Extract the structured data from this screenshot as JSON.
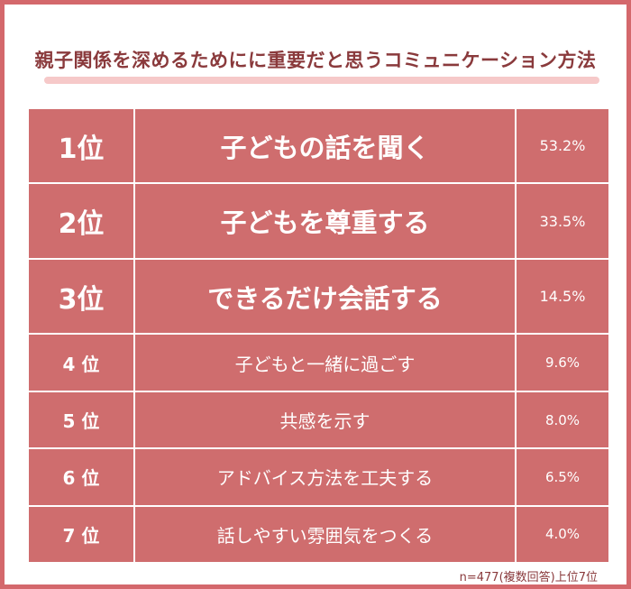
{
  "title": "親子関係を深めるためにに重要だと思うコミュニケーション方法",
  "rows": [
    {
      "rank": "1位",
      "label": "子どもの話を聞く",
      "pct": "53.2%"
    },
    {
      "rank": "2位",
      "label": "子どもを尊重する",
      "pct": "33.5%"
    },
    {
      "rank": "3位",
      "label": "できるだけ会話する",
      "pct": "14.5%"
    },
    {
      "rank": "4 位",
      "label": "子どもと一緒に過ごす",
      "pct": "9.6%"
    },
    {
      "rank": "5 位",
      "label": "共感を示す",
      "pct": "8.0%"
    },
    {
      "rank": "6 位",
      "label": "アドバイス方法を工夫する",
      "pct": "6.5%"
    },
    {
      "rank": "7 位",
      "label": "話しやすい雰囲気をつくる",
      "pct": "4.0%"
    }
  ],
  "note": "n=477(複数回答)上位7位",
  "colors": {
    "accent": "#cf6d6e",
    "border": "#d4686c",
    "title": "#8a3a3c",
    "underline": "#f6c9c9"
  }
}
